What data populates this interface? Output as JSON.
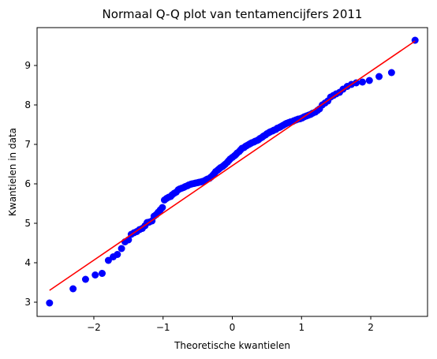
{
  "chart_data": {
    "type": "scatter",
    "title": "Normaal Q-Q plot van tentamencijfers 2011",
    "xlabel": "Theoretische kwantielen",
    "ylabel": "Kwantielen in data",
    "xlim": [
      -2.82,
      2.82
    ],
    "ylim": [
      2.64,
      9.96
    ],
    "xticks": [
      -2,
      -1,
      0,
      1,
      2
    ],
    "xtick_labels": [
      "−2",
      "−1",
      "0",
      "1",
      "2"
    ],
    "yticks": [
      3,
      4,
      5,
      6,
      7,
      8,
      9
    ],
    "ytick_labels": [
      "3",
      "4",
      "5",
      "6",
      "7",
      "8",
      "9"
    ],
    "grid": false,
    "marker_color": "#0000ff",
    "line_color": "#ff0000",
    "fit_line": {
      "x": [
        -2.64,
        2.64
      ],
      "y": [
        3.3,
        9.62
      ]
    },
    "points": {
      "x": [
        -2.64,
        -2.3,
        -2.12,
        -1.98,
        -1.88,
        -1.79,
        -1.72,
        -1.66,
        -1.6,
        -1.55,
        -1.5,
        -1.46,
        -1.42,
        -1.38,
        -1.34,
        -1.3,
        -1.26,
        -1.23,
        -1.2,
        -1.16,
        -1.13,
        -1.1,
        -1.07,
        -1.04,
        -1.01,
        -0.98,
        -0.95,
        -0.92,
        -0.89,
        -0.87,
        -0.84,
        -0.81,
        -0.78,
        -0.76,
        -0.73,
        -0.7,
        -0.68,
        -0.65,
        -0.63,
        -0.6,
        -0.58,
        -0.55,
        -0.53,
        -0.5,
        -0.48,
        -0.45,
        -0.43,
        -0.4,
        -0.38,
        -0.36,
        -0.33,
        -0.31,
        -0.28,
        -0.26,
        -0.24,
        -0.21,
        -0.19,
        -0.17,
        -0.14,
        -0.12,
        -0.1,
        -0.07,
        -0.05,
        -0.03,
        0.0,
        0.03,
        0.05,
        0.07,
        0.1,
        0.12,
        0.14,
        0.17,
        0.19,
        0.21,
        0.24,
        0.26,
        0.28,
        0.31,
        0.33,
        0.36,
        0.38,
        0.4,
        0.43,
        0.45,
        0.48,
        0.5,
        0.53,
        0.55,
        0.58,
        0.6,
        0.63,
        0.65,
        0.68,
        0.7,
        0.73,
        0.76,
        0.78,
        0.81,
        0.84,
        0.87,
        0.89,
        0.92,
        0.95,
        0.98,
        1.01,
        1.04,
        1.07,
        1.1,
        1.13,
        1.16,
        1.2,
        1.23,
        1.26,
        1.3,
        1.34,
        1.38,
        1.42,
        1.46,
        1.5,
        1.55,
        1.6,
        1.66,
        1.72,
        1.79,
        1.88,
        1.98,
        2.12,
        2.3,
        2.64
      ],
      "y": [
        2.98,
        3.34,
        3.58,
        3.69,
        3.73,
        4.06,
        4.15,
        4.21,
        4.36,
        4.53,
        4.58,
        4.72,
        4.76,
        4.79,
        4.84,
        4.87,
        4.94,
        5.02,
        5.03,
        5.06,
        5.18,
        5.22,
        5.28,
        5.34,
        5.4,
        5.59,
        5.63,
        5.66,
        5.68,
        5.72,
        5.76,
        5.79,
        5.85,
        5.87,
        5.89,
        5.91,
        5.93,
        5.95,
        5.97,
        5.99,
        6.0,
        6.01,
        6.02,
        6.03,
        6.04,
        6.05,
        6.06,
        6.08,
        6.1,
        6.12,
        6.14,
        6.17,
        6.22,
        6.26,
        6.31,
        6.35,
        6.38,
        6.41,
        6.44,
        6.47,
        6.5,
        6.55,
        6.59,
        6.63,
        6.67,
        6.71,
        6.74,
        6.78,
        6.82,
        6.86,
        6.9,
        6.92,
        6.95,
        6.97,
        7.0,
        7.02,
        7.04,
        7.06,
        7.08,
        7.1,
        7.12,
        7.15,
        7.18,
        7.21,
        7.24,
        7.27,
        7.3,
        7.32,
        7.34,
        7.36,
        7.38,
        7.41,
        7.43,
        7.45,
        7.48,
        7.51,
        7.53,
        7.55,
        7.57,
        7.58,
        7.6,
        7.62,
        7.64,
        7.65,
        7.67,
        7.7,
        7.72,
        7.74,
        7.76,
        7.79,
        7.82,
        7.86,
        7.9,
        8.0,
        8.05,
        8.1,
        8.2,
        8.24,
        8.28,
        8.32,
        8.4,
        8.47,
        8.52,
        8.56,
        8.58,
        8.62,
        8.72,
        8.82,
        9.64
      ]
    }
  }
}
